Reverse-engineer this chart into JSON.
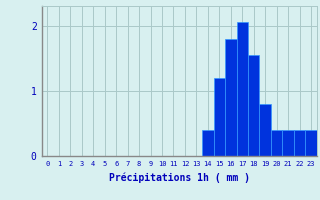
{
  "categories": [
    0,
    1,
    2,
    3,
    4,
    5,
    6,
    7,
    8,
    9,
    10,
    11,
    12,
    13,
    14,
    15,
    16,
    17,
    18,
    19,
    20,
    21,
    22,
    23
  ],
  "values": [
    0,
    0,
    0,
    0,
    0,
    0,
    0,
    0,
    0,
    0,
    0,
    0,
    0,
    0,
    0.4,
    1.2,
    1.8,
    2.05,
    1.55,
    0.8,
    0.4,
    0.4,
    0.4,
    0.4
  ],
  "bar_color": "#0033dd",
  "bar_edge_color": "#3399ff",
  "background_color": "#d8f0f0",
  "grid_color": "#aac8c8",
  "xlabel": "Précipitations 1h ( mm )",
  "xlabel_color": "#0000bb",
  "tick_color": "#0000bb",
  "ylim": [
    0,
    2.3
  ],
  "yticks": [
    0,
    1,
    2
  ],
  "xlim": [
    -0.5,
    23.5
  ]
}
